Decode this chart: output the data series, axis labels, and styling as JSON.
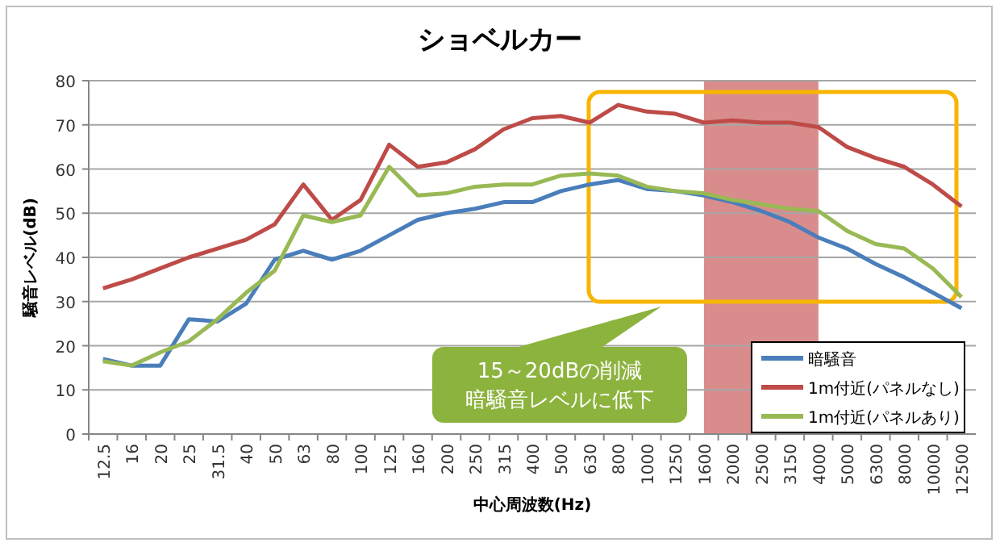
{
  "chart_data": {
    "type": "line",
    "title": "ショベルカー",
    "xlabel": "中心周波数(Hz)",
    "ylabel": "騒音レベル(dB)",
    "categories": [
      "12.5",
      "16",
      "20",
      "25",
      "31.5",
      "40",
      "50",
      "63",
      "80",
      "100",
      "125",
      "160",
      "200",
      "250",
      "315",
      "400",
      "500",
      "630",
      "800",
      "1000",
      "1250",
      "1600",
      "2000",
      "2500",
      "3150",
      "4000",
      "5000",
      "6300",
      "8000",
      "10000",
      "12500"
    ],
    "series": [
      {
        "name": "暗騒音",
        "color": "#4a7ebb",
        "values": [
          17,
          15.5,
          15.5,
          26,
          25.5,
          29.5,
          39.5,
          41.5,
          39.5,
          41.5,
          45,
          48.5,
          50,
          51,
          52.5,
          52.5,
          55,
          56.5,
          57.5,
          55.5,
          55,
          54,
          52.5,
          50.5,
          48,
          44.5,
          42,
          38.5,
          35.5,
          32,
          28.5
        ]
      },
      {
        "name": "1m付近(パネルなし)",
        "color": "#be4b48",
        "values": [
          33,
          35,
          37.5,
          40,
          42,
          44,
          47.5,
          56.5,
          48.5,
          53,
          65.5,
          60.5,
          61.5,
          64.5,
          69,
          71.5,
          72,
          70.5,
          74.5,
          73,
          72.5,
          70.5,
          71,
          70.5,
          70.5,
          69.5,
          65,
          62.5,
          60.5,
          56.5,
          51.5
        ]
      },
      {
        "name": "1m付近(パネルあり)",
        "color": "#98b954",
        "values": [
          16.5,
          15.5,
          18.5,
          21,
          26,
          32,
          37,
          49.5,
          48,
          49.5,
          60.5,
          54,
          54.5,
          56,
          56.5,
          56.5,
          58.5,
          59,
          58.5,
          56,
          55,
          54.5,
          53,
          52,
          51,
          50.5,
          46,
          43,
          42,
          37.5,
          31
        ]
      }
    ],
    "ylim": [
      0,
      80
    ],
    "yticks": [
      0,
      10,
      20,
      30,
      40,
      50,
      60,
      70,
      80
    ],
    "grid": "y",
    "legend": "bottom right",
    "bands": [
      {
        "axis": "x",
        "from": "1600",
        "to": "4000",
        "color": "#d98c8c"
      }
    ],
    "annotations": [
      "15～20dBの削減",
      "暗騒音レベルに低下"
    ]
  }
}
